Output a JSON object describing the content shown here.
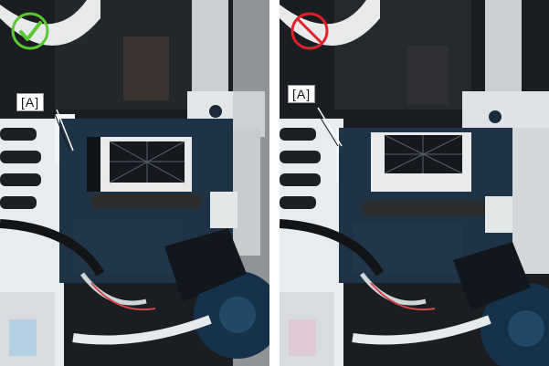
{
  "panels": [
    {
      "label": "[A]",
      "status_icon": "check-mark-icon",
      "status_color": "#5cc830"
    },
    {
      "label": "[A]",
      "status_icon": "prohibited-icon",
      "status_color": "#e0202a"
    }
  ]
}
